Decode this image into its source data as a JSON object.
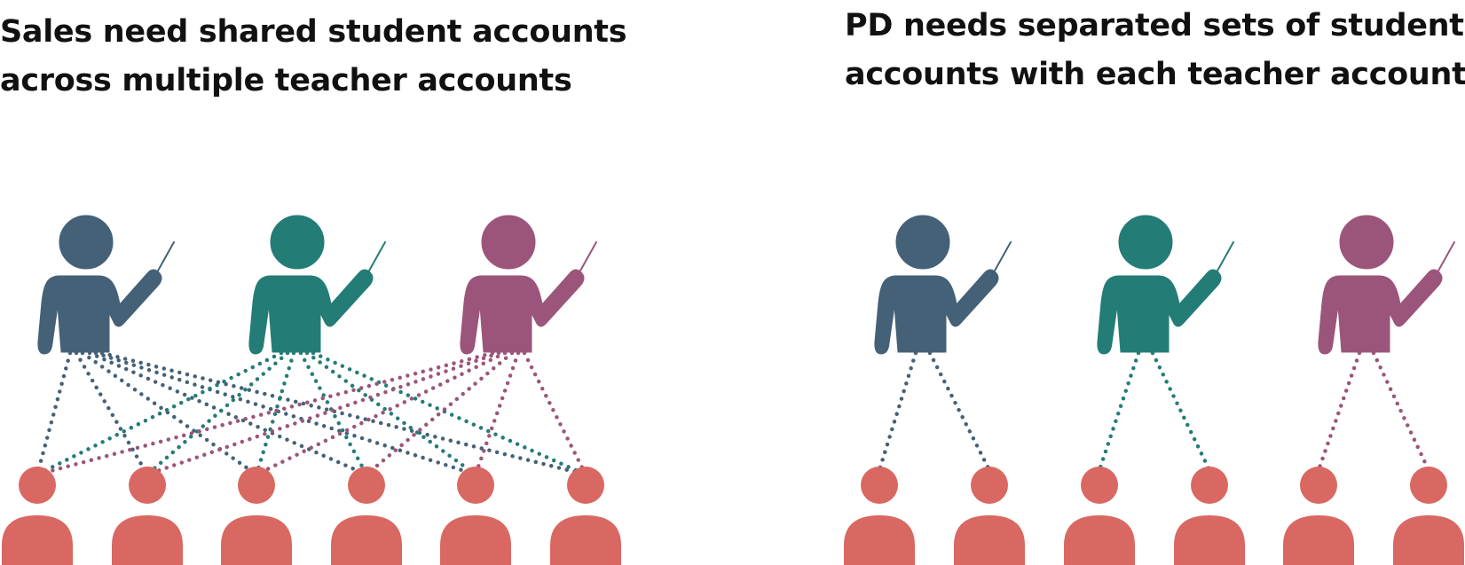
{
  "panels": [
    {
      "heading_lines": [
        "Sales need shared student accounts",
        "across multiple teacher accounts"
      ],
      "mode": "shared"
    },
    {
      "heading_lines": [
        "PD needs separated sets of student",
        "accounts with each teacher account"
      ],
      "mode": "separated"
    }
  ],
  "colors": {
    "teacher": [
      "#456177",
      "#247c77",
      "#9c557a"
    ],
    "student": "#d96862"
  },
  "icons": {
    "teacher": "teacher-with-pointer-icon",
    "student": "student-icon"
  }
}
